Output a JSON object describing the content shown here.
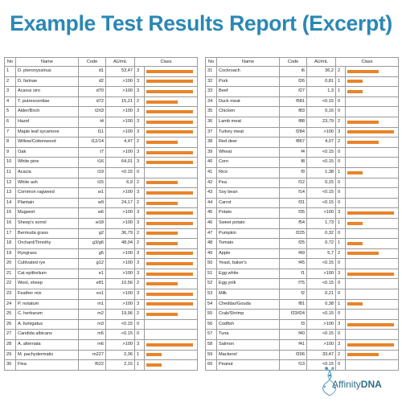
{
  "title": "Example Test Results Report (Excerpt)",
  "columns": {
    "no": "No",
    "name": "Name",
    "code": "Code",
    "au": "AU/mL",
    "class": "Class"
  },
  "bar_color": "#e8842a",
  "left_rows": [
    {
      "no": "1",
      "name": "D. pteronyssinus",
      "code": "d1",
      "au": "53,47",
      "cls": "3",
      "level": 3
    },
    {
      "no": "2",
      "name": "D. farinae",
      "code": "d2",
      "au": ">100",
      "cls": "3",
      "level": 3
    },
    {
      "no": "3",
      "name": "Acarus siro",
      "code": "d70",
      "au": ">100",
      "cls": "3",
      "level": 3
    },
    {
      "no": "4",
      "name": "T. putrescentiae",
      "code": "d72",
      "au": "15,21",
      "cls": "2",
      "level": 2
    },
    {
      "no": "5",
      "name": "Alder/Birch",
      "code": "t2/t3",
      "au": ">100",
      "cls": "3",
      "level": 3
    },
    {
      "no": "6",
      "name": "Hazel",
      "code": "t4",
      "au": ">100",
      "cls": "3",
      "level": 3
    },
    {
      "no": "7",
      "name": "Maple leaf sycamore",
      "code": "t11",
      "au": ">100",
      "cls": "3",
      "level": 3
    },
    {
      "no": "8",
      "name": "Willow/Cottonwood",
      "code": "t12/14",
      "au": "4,47",
      "cls": "2",
      "level": 2
    },
    {
      "no": "9",
      "name": "Oak",
      "code": "t7",
      "au": ">100",
      "cls": "3",
      "level": 3
    },
    {
      "no": "10",
      "name": "White pine",
      "code": "t16",
      "au": "64,01",
      "cls": "3",
      "level": 3
    },
    {
      "no": "11",
      "name": "Acacia",
      "code": "t19",
      "au": "<0.15",
      "cls": "0",
      "level": 0
    },
    {
      "no": "12",
      "name": "White ash",
      "code": "t15",
      "au": "6,9",
      "cls": "2",
      "level": 2
    },
    {
      "no": "13",
      "name": "Common ragweed",
      "code": "w1",
      "au": ">100",
      "cls": "3",
      "level": 3
    },
    {
      "no": "14",
      "name": "Plantain",
      "code": "w9",
      "au": "24,17",
      "cls": "2",
      "level": 2
    },
    {
      "no": "15",
      "name": "Mugwort",
      "code": "w6",
      "au": ">100",
      "cls": "3",
      "level": 3
    },
    {
      "no": "16",
      "name": "Sheep's sorrel",
      "code": "w18",
      "au": ">100",
      "cls": "3",
      "level": 3
    },
    {
      "no": "17",
      "name": "Bermuda grass",
      "code": "g2",
      "au": "36,79",
      "cls": "2",
      "level": 2
    },
    {
      "no": "18",
      "name": "Orchard/Timothy",
      "code": "g3/g6",
      "au": "48,04",
      "cls": "2",
      "level": 2
    },
    {
      "no": "19",
      "name": "Ryegrass",
      "code": "g5",
      "au": ">100",
      "cls": "3",
      "level": 3
    },
    {
      "no": "20",
      "name": "Cultivated rye",
      "code": "g12",
      "au": ">100",
      "cls": "3",
      "level": 3
    },
    {
      "no": "21",
      "name": "Cat epithelium",
      "code": "e1",
      "au": ">100",
      "cls": "3",
      "level": 3
    },
    {
      "no": "22",
      "name": "Wool, sheep",
      "code": "e81",
      "au": "10,56",
      "cls": "2",
      "level": 2
    },
    {
      "no": "23",
      "name": "Feather mix",
      "code": "ex1",
      "au": ">100",
      "cls": "3",
      "level": 3
    },
    {
      "no": "24",
      "name": "P. notatum",
      "code": "m1",
      "au": ">100",
      "cls": "3",
      "level": 3
    },
    {
      "no": "25",
      "name": "C. herbarum",
      "code": "m2",
      "au": "19,96",
      "cls": "2",
      "level": 2
    },
    {
      "no": "26",
      "name": "A. fumigatus",
      "code": "m3",
      "au": "<0.15",
      "cls": "0",
      "level": 0
    },
    {
      "no": "27",
      "name": "Candida albicans",
      "code": "m5",
      "au": "<0.15",
      "cls": "0",
      "level": 0
    },
    {
      "no": "28",
      "name": "A. alternata",
      "code": "m6",
      "au": ">100",
      "cls": "3",
      "level": 3
    },
    {
      "no": "29",
      "name": "M. pachydermatis",
      "code": "m227",
      "au": "2,36",
      "cls": "1",
      "level": 1
    },
    {
      "no": "30",
      "name": "Flea",
      "code": "f622",
      "au": "2,15",
      "cls": "1",
      "level": 1
    }
  ],
  "right_rows": [
    {
      "no": "31",
      "name": "Cockroach",
      "code": "i6",
      "au": "36,2",
      "cls": "2",
      "level": 2
    },
    {
      "no": "32",
      "name": "Pork",
      "code": "f26",
      "au": "0,81",
      "cls": "1",
      "level": 1
    },
    {
      "no": "33",
      "name": "Beef",
      "code": "f27",
      "au": "1,3",
      "cls": "1",
      "level": 1
    },
    {
      "no": "34",
      "name": "Duck meat",
      "code": "f581",
      "au": "<0.15",
      "cls": "0",
      "level": 0
    },
    {
      "no": "35",
      "name": "Chicken",
      "code": "f83",
      "au": "0,16",
      "cls": "0",
      "level": 0
    },
    {
      "no": "36",
      "name": "Lamb meat",
      "code": "f88",
      "au": "23,79",
      "cls": "2",
      "level": 2
    },
    {
      "no": "37",
      "name": "Turkey  meat",
      "code": "f284",
      "au": ">100",
      "cls": "3",
      "level": 3
    },
    {
      "no": "38",
      "name": "Red deer",
      "code": "f867",
      "au": "4,07",
      "cls": "2",
      "level": 2
    },
    {
      "no": "39",
      "name": "Wheat",
      "code": "f4",
      "au": "<0.15",
      "cls": "0",
      "level": 0
    },
    {
      "no": "40",
      "name": "Corn",
      "code": "f8",
      "au": "<0.15",
      "cls": "0",
      "level": 0
    },
    {
      "no": "41",
      "name": "Rice",
      "code": "f9",
      "au": "1,38",
      "cls": "1",
      "level": 1
    },
    {
      "no": "42",
      "name": "Pea",
      "code": "f12",
      "au": "0,15",
      "cls": "0",
      "level": 0
    },
    {
      "no": "43",
      "name": "Soy bean",
      "code": "f14",
      "au": "<0.15",
      "cls": "0",
      "level": 0
    },
    {
      "no": "44",
      "name": "Carrot",
      "code": "f31",
      "au": "<0.15",
      "cls": "0",
      "level": 0
    },
    {
      "no": "45",
      "name": "Potato",
      "code": "f35",
      "au": ">100",
      "cls": "3",
      "level": 3
    },
    {
      "no": "46",
      "name": "Sweet potato",
      "code": "f54",
      "au": "1,73",
      "cls": "1",
      "level": 1
    },
    {
      "no": "47",
      "name": "Pumpkin",
      "code": "f225",
      "au": "0,32",
      "cls": "0",
      "level": 0
    },
    {
      "no": "48",
      "name": "Tomato",
      "code": "f25",
      "au": "0,72",
      "cls": "1",
      "level": 1
    },
    {
      "no": "49",
      "name": "Apple",
      "code": "f49",
      "au": "5,7",
      "cls": "2",
      "level": 2
    },
    {
      "no": "50",
      "name": "Yeast, baker's",
      "code": "f45",
      "au": "<0.15",
      "cls": "0",
      "level": 0
    },
    {
      "no": "51",
      "name": "Egg white",
      "code": "f1",
      "au": ">100",
      "cls": "3",
      "level": 3
    },
    {
      "no": "52",
      "name": "Egg yolk",
      "code": "f75",
      "au": "<0.15",
      "cls": "0",
      "level": 0
    },
    {
      "no": "53",
      "name": "Milk",
      "code": "f2",
      "au": "0,21",
      "cls": "0",
      "level": 0
    },
    {
      "no": "54",
      "name": "Cheddar/Gouda",
      "code": "f81",
      "au": "0,38",
      "cls": "1",
      "level": 1
    },
    {
      "no": "55",
      "name": "Crab/Shrimp",
      "code": "f23/f24",
      "au": "<0.15",
      "cls": "0",
      "level": 0
    },
    {
      "no": "56",
      "name": "Codfish",
      "code": "f3",
      "au": ">100",
      "cls": "3",
      "level": 3
    },
    {
      "no": "57",
      "name": "Tuna",
      "code": "f40",
      "au": "<0.15",
      "cls": "0",
      "level": 0
    },
    {
      "no": "58",
      "name": "Salmon",
      "code": "f41",
      "au": ">100",
      "cls": "3",
      "level": 3
    },
    {
      "no": "59",
      "name": "Mackerel",
      "code": "f206",
      "au": "33,47",
      "cls": "2",
      "level": 2
    },
    {
      "no": "60",
      "name": "Peanut",
      "code": "f13",
      "au": "<0.15",
      "cls": "0",
      "level": 0
    }
  ],
  "logo": {
    "text_a": "Affinity",
    "text_b": "DNA"
  }
}
